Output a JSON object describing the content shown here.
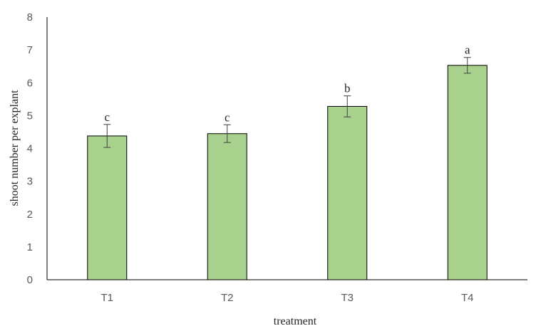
{
  "chart_data": {
    "type": "bar",
    "title": "",
    "xlabel": "treatment",
    "ylabel": "shoot number per explant",
    "categories": [
      "T1",
      "T2",
      "T3",
      "T4"
    ],
    "values": [
      4.38,
      4.45,
      5.28,
      6.53
    ],
    "errors": [
      0.35,
      0.27,
      0.32,
      0.24
    ],
    "significance_labels": [
      "c",
      "c",
      "b",
      "a"
    ],
    "ylim": [
      0,
      8
    ],
    "yticks": [
      0,
      1,
      2,
      3,
      4,
      5,
      6,
      7,
      8
    ],
    "grid": false,
    "legend": "none",
    "colors": {
      "bar_fill": "#a9d18e",
      "bar_stroke": "#000000",
      "axis": "#000000",
      "error_bar": "#404040"
    }
  }
}
